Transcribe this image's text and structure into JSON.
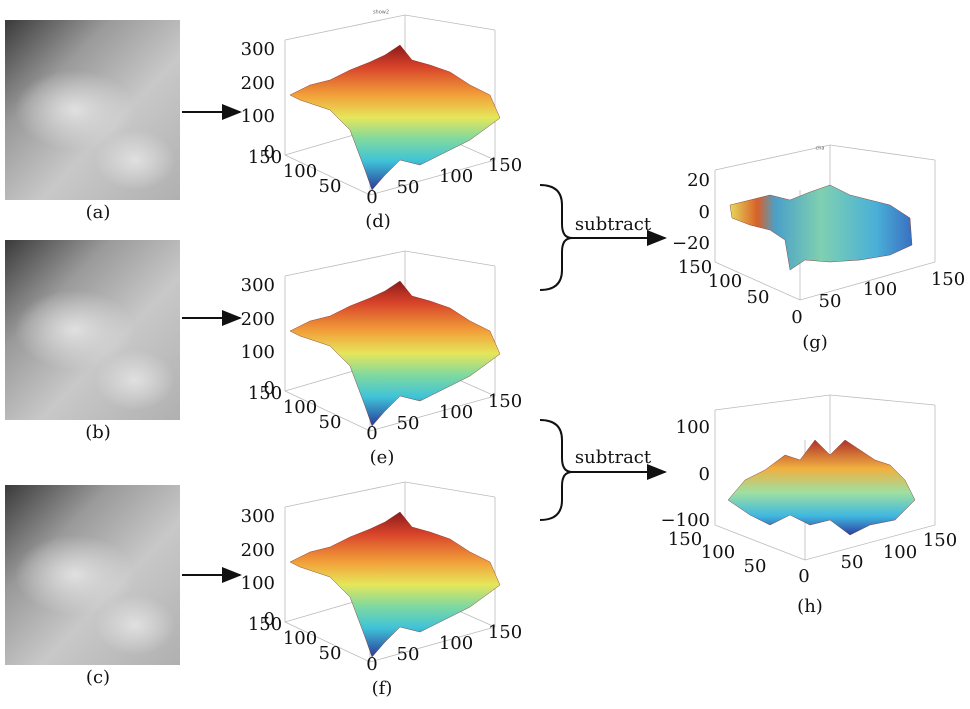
{
  "panels": [
    {
      "label": "(a)"
    },
    {
      "label": "(b)"
    },
    {
      "label": "(c)"
    }
  ],
  "plots": [
    {
      "title": "show2",
      "caption": "(d)",
      "zticks": [
        "300",
        "200",
        "100",
        "0"
      ],
      "depth_ticks": [
        "150",
        "100",
        "50",
        "0"
      ],
      "x_ticks": [
        "50",
        "100",
        "150"
      ]
    },
    {
      "caption": "(e)",
      "zticks": [
        "300",
        "200",
        "100",
        "0"
      ],
      "depth_ticks": [
        "150",
        "100",
        "50",
        "0"
      ],
      "x_ticks": [
        "50",
        "100",
        "150"
      ]
    },
    {
      "caption": "(f)",
      "zticks": [
        "300",
        "200",
        "100",
        "0"
      ],
      "depth_ticks": [
        "150",
        "100",
        "50",
        "0"
      ],
      "x_ticks": [
        "50",
        "100",
        "150"
      ]
    },
    {
      "title": "cha",
      "caption": "(g)",
      "zticks": [
        "20",
        "0",
        "−20"
      ],
      "depth_ticks": [
        "150",
        "100",
        "50",
        "0"
      ],
      "x_ticks": [
        "50",
        "100",
        "150"
      ]
    },
    {
      "caption": "(h)",
      "zticks": [
        "100",
        "0",
        "−100"
      ],
      "depth_ticks": [
        "150",
        "100",
        "50",
        "0"
      ],
      "x_ticks": [
        "50",
        "100",
        "150"
      ]
    }
  ],
  "operations": [
    "subtract",
    "subtract"
  ]
}
